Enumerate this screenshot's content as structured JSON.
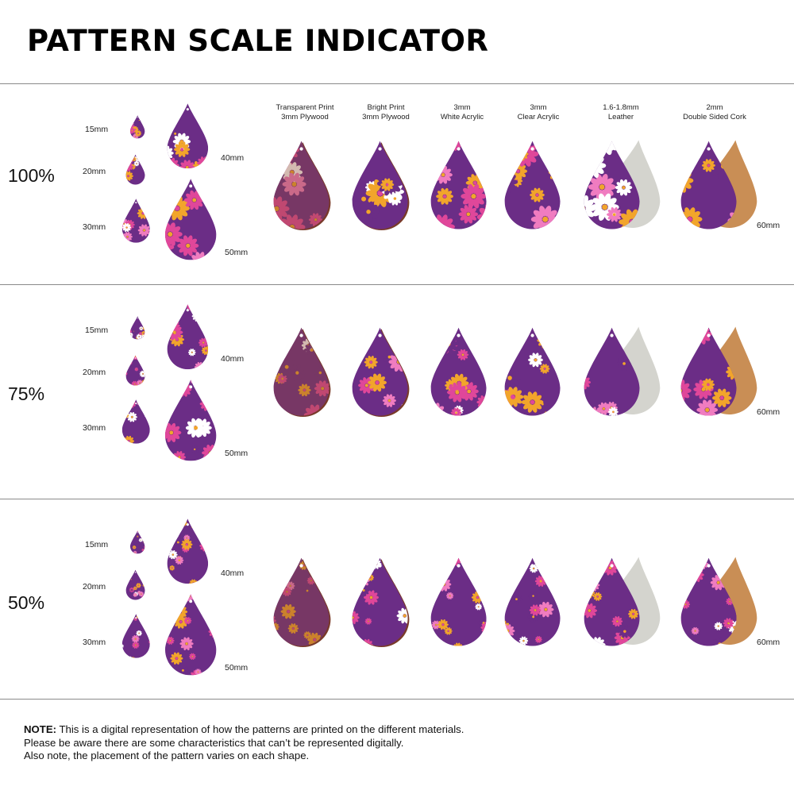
{
  "title": "PATTERN SCALE INDICATOR",
  "materials": [
    {
      "line1": "Transparent Print",
      "line2": "3mm Plywood"
    },
    {
      "line1": "Bright Print",
      "line2": "3mm Plywood"
    },
    {
      "line1": "3mm",
      "line2": "White Acrylic"
    },
    {
      "line1": "3mm",
      "line2": "Clear Acrylic"
    },
    {
      "line1": "1.6-1.8mm",
      "line2": "Leather"
    },
    {
      "line1": "2mm",
      "line2": "Double Sided Cork"
    }
  ],
  "sections": [
    {
      "scale": "100%",
      "sizes": [
        "15mm",
        "20mm",
        "30mm",
        "40mm",
        "50mm"
      ],
      "material_size": "60mm"
    },
    {
      "scale": "75%",
      "sizes": [
        "15mm",
        "20mm",
        "30mm",
        "40mm",
        "50mm"
      ],
      "material_size": "60mm"
    },
    {
      "scale": "50%",
      "sizes": [
        "15mm",
        "20mm",
        "30mm",
        "40mm",
        "50mm"
      ],
      "material_size": "60mm"
    }
  ],
  "note": {
    "label": "NOTE:",
    "line1": " This is a digital representation of how the patterns are printed on the different materials.",
    "line2": "Please be aware there are some characteristics that can’t be represented digitally.",
    "line3": "Also note, the placement of the pattern varies on each shape."
  },
  "colors": {
    "pink": "#e0479a",
    "light_pink": "#f07cc0",
    "orange": "#f2a52b",
    "purple": "#6b2d86",
    "white": "#ffffff",
    "dark": "#1a1a1a",
    "leather_back": "#d4d4ce",
    "cork_back": "#c98e55",
    "plywood_edge": "#7a3b2a"
  }
}
